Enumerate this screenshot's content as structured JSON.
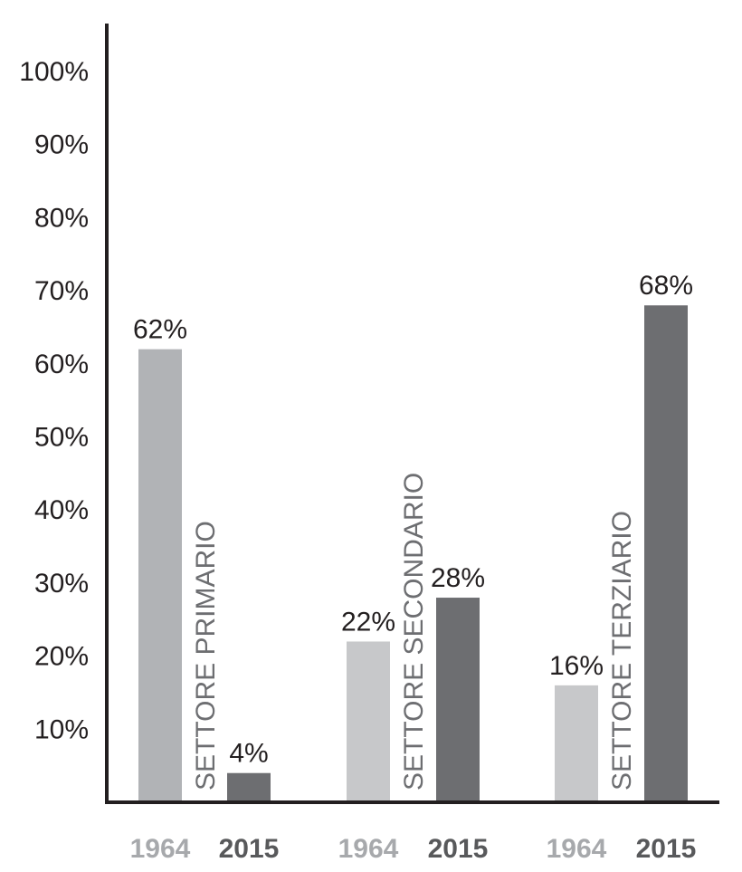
{
  "chart_data": {
    "type": "bar",
    "title": "",
    "xlabel": "",
    "ylabel": "",
    "ylim": [
      0,
      100
    ],
    "yticks": [
      "10%",
      "20%",
      "30%",
      "40%",
      "50%",
      "60%",
      "70%",
      "80%",
      "90%",
      "100%"
    ],
    "grid": false,
    "groups": [
      {
        "category": "SETTORE PRIMARIO",
        "bars": [
          {
            "year": "1964",
            "value": 62,
            "label": "62%"
          },
          {
            "year": "2015",
            "value": 4,
            "label": "4%"
          }
        ]
      },
      {
        "category": "SETTORE SECONDARIO",
        "bars": [
          {
            "year": "1964",
            "value": 22,
            "label": "22%"
          },
          {
            "year": "2015",
            "value": 28,
            "label": "28%"
          }
        ]
      },
      {
        "category": "SETTORE TERZIARIO",
        "bars": [
          {
            "year": "1964",
            "value": 16,
            "label": "16%"
          },
          {
            "year": "2015",
            "value": 68,
            "label": "68%"
          }
        ]
      }
    ],
    "colors": {
      "bar_1964_group1": "#b1b3b6",
      "bar_1964": "#c7c8ca",
      "bar_2015": "#6d6e71",
      "year_1964_text": "#a7a9ac",
      "year_2015_text": "#58595b",
      "axis": "#231f20"
    }
  }
}
